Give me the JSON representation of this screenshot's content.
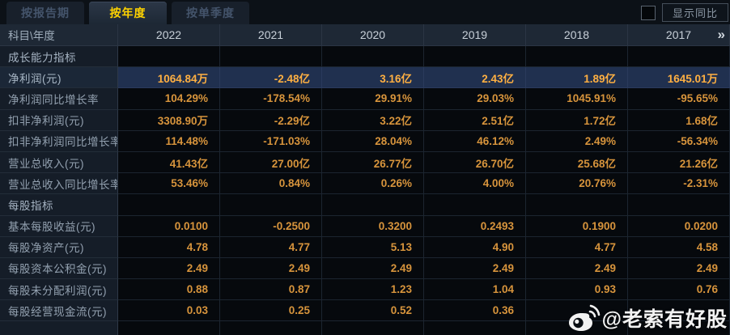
{
  "tabs": [
    {
      "label": "按报告期",
      "active": false
    },
    {
      "label": "按年度",
      "active": true
    },
    {
      "label": "按单季度",
      "active": false
    }
  ],
  "controls": {
    "show_yoy_label": "显示同比",
    "checkbox_checked": false
  },
  "table": {
    "corner_header": "科目\\年度",
    "years": [
      "2022",
      "2021",
      "2020",
      "2019",
      "2018",
      "2017"
    ],
    "pager_icon": "»",
    "rows": [
      {
        "type": "section",
        "label": "成长能力指标",
        "values": [
          "",
          "",
          "",
          "",
          "",
          ""
        ]
      },
      {
        "type": "data",
        "label": "净利润(元)",
        "highlight": true,
        "values": [
          "1064.84万",
          "-2.48亿",
          "3.16亿",
          "2.43亿",
          "1.89亿",
          "1645.01万"
        ]
      },
      {
        "type": "data",
        "label": "净利润同比增长率",
        "values": [
          "104.29%",
          "-178.54%",
          "29.91%",
          "29.03%",
          "1045.91%",
          "-95.65%"
        ]
      },
      {
        "type": "data",
        "label": "扣非净利润(元)",
        "values": [
          "3308.90万",
          "-2.29亿",
          "3.22亿",
          "2.51亿",
          "1.72亿",
          "1.68亿"
        ]
      },
      {
        "type": "data",
        "label": "扣非净利润同比增长率",
        "values": [
          "114.48%",
          "-171.03%",
          "28.04%",
          "46.12%",
          "2.49%",
          "-56.34%"
        ]
      },
      {
        "type": "data",
        "label": "营业总收入(元)",
        "values": [
          "41.43亿",
          "27.00亿",
          "26.77亿",
          "26.70亿",
          "25.68亿",
          "21.26亿"
        ]
      },
      {
        "type": "data",
        "label": "营业总收入同比增长率",
        "values": [
          "53.46%",
          "0.84%",
          "0.26%",
          "4.00%",
          "20.76%",
          "-2.31%"
        ]
      },
      {
        "type": "section",
        "label": "每股指标",
        "values": [
          "",
          "",
          "",
          "",
          "",
          ""
        ]
      },
      {
        "type": "data",
        "label": "基本每股收益(元)",
        "values": [
          "0.0100",
          "-0.2500",
          "0.3200",
          "0.2493",
          "0.1900",
          "0.0200"
        ]
      },
      {
        "type": "data",
        "label": "每股净资产(元)",
        "values": [
          "4.78",
          "4.77",
          "5.13",
          "4.90",
          "4.77",
          "4.58"
        ]
      },
      {
        "type": "data",
        "label": "每股资本公积金(元)",
        "values": [
          "2.49",
          "2.49",
          "2.49",
          "2.49",
          "2.49",
          "2.49"
        ]
      },
      {
        "type": "data",
        "label": "每股未分配利润(元)",
        "values": [
          "0.88",
          "0.87",
          "1.23",
          "1.04",
          "0.93",
          "0.76"
        ]
      },
      {
        "type": "data",
        "label": "每股经营现金流(元)",
        "values": [
          "0.03",
          "0.25",
          "0.52",
          "0.36",
          "",
          ""
        ]
      }
    ]
  },
  "watermark": {
    "text": "@老索有好股",
    "icon": "weibo-icon"
  },
  "colors": {
    "value_orange": "#d7943c",
    "highlight_value": "#ffb042",
    "highlight_row_bg": "#20304f",
    "active_tab_text": "#ffd300",
    "header_bg": "#1e2835",
    "label_col_bg": "#151d28",
    "data_cell_bg": "#06090d"
  }
}
